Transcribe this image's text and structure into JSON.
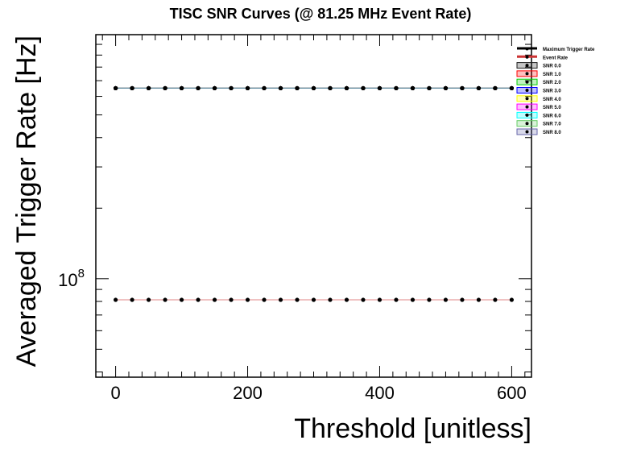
{
  "chart_data": {
    "type": "line",
    "title": "TISC SNR Curves (@ 81.25 MHz Event Rate)",
    "xlabel": "Threshold [unitless]",
    "ylabel": "Averaged Trigger Rate [Hz]",
    "xlim": [
      -30,
      630
    ],
    "ylim": [
      38000000,
      1100000000
    ],
    "yscale": "log",
    "xticks": [
      0,
      200,
      400,
      600
    ],
    "xtick_labels": [
      "0",
      "200",
      "400",
      "600"
    ],
    "yticks": [
      100000000
    ],
    "ytick_label": {
      "base": "10",
      "exp": "8"
    },
    "x": [
      0,
      25,
      50,
      75,
      100,
      125,
      150,
      175,
      200,
      225,
      250,
      275,
      300,
      325,
      350,
      375,
      400,
      425,
      450,
      475,
      500,
      525,
      550,
      575,
      600
    ],
    "series": [
      {
        "name": "Maximum Trigger Rate",
        "color": "#000000",
        "value": 650000000
      },
      {
        "name": "Event Rate",
        "color": "#cc3333",
        "value": 81250000
      },
      {
        "name": "SNR 0.0",
        "color": "#1a1a1a",
        "value": 650000000
      },
      {
        "name": "SNR 1.0",
        "color": "#ff0000",
        "value": 650000000
      },
      {
        "name": "SNR 2.0",
        "color": "#00cc00",
        "value": 650000000
      },
      {
        "name": "SNR 3.0",
        "color": "#0000ff",
        "value": 650000000
      },
      {
        "name": "SNR 4.0",
        "color": "#ffff00",
        "value": 650000000
      },
      {
        "name": "SNR 5.0",
        "color": "#ff00ff",
        "value": 650000000
      },
      {
        "name": "SNR 6.0",
        "color": "#00ffff",
        "value": 650000000
      },
      {
        "name": "SNR 7.0",
        "color": "#66cc66",
        "value": 650000000
      },
      {
        "name": "SNR 8.0",
        "color": "#6666aa",
        "value": 650000000
      }
    ],
    "legend_position": "top-right",
    "grid": false
  }
}
